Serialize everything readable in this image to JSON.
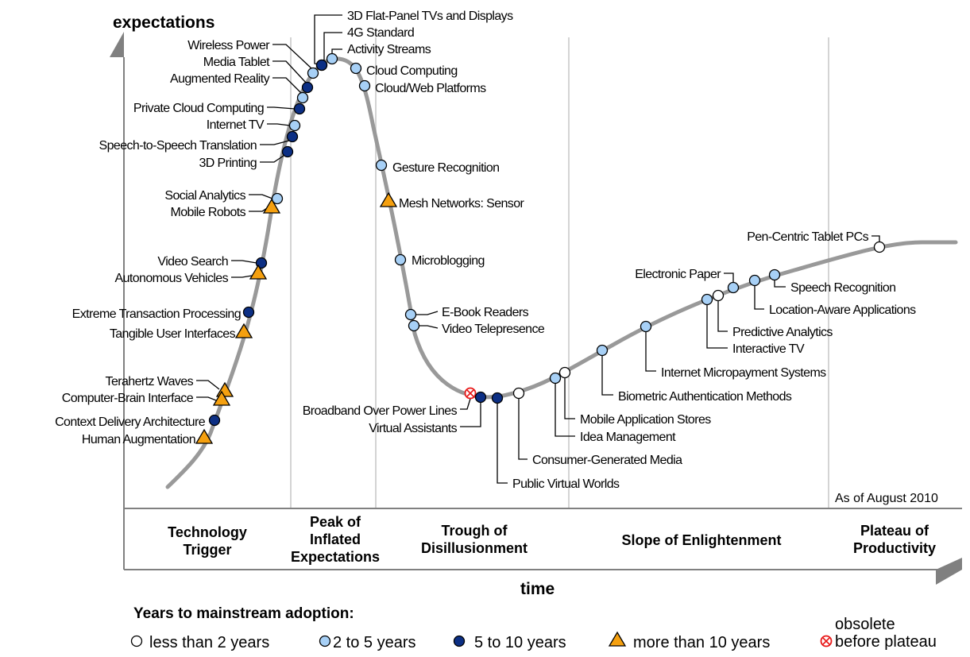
{
  "axes": {
    "y_label": "expectations",
    "x_label": "time"
  },
  "as_of": "As of August 2010",
  "phases": [
    {
      "lines": [
        "Technology",
        "Trigger"
      ]
    },
    {
      "lines": [
        "Peak of",
        "Inflated",
        "Expectations"
      ]
    },
    {
      "lines": [
        "Trough of",
        "Disillusionment"
      ]
    },
    {
      "lines": [
        "Slope of Enlightenment"
      ]
    },
    {
      "lines": [
        "Plateau of",
        "Productivity"
      ]
    }
  ],
  "legend": {
    "heading": "Years to mainstream adoption:",
    "items": [
      {
        "label": "less than 2 years",
        "category": "lt2"
      },
      {
        "label": "2 to 5 years",
        "category": "2to5"
      },
      {
        "label": "5 to 10 years",
        "category": "5to10"
      },
      {
        "label": "more than 10 years",
        "category": "gt10"
      }
    ],
    "obsolete_label": [
      "obsolete",
      "before plateau"
    ]
  },
  "colors": {
    "lt2": "#ffffff",
    "2to5": "#a7d0f6",
    "5to10": "#0c2f84",
    "gt10": "#f5a00f",
    "obsolete": "#e81818",
    "curve": "#999999",
    "axis": "#808080"
  },
  "technologies": [
    {
      "name": "3D Flat-Panel TVs and Displays",
      "category": "5to10"
    },
    {
      "name": "4G Standard",
      "category": "5to10"
    },
    {
      "name": "Activity Streams",
      "category": "2to5"
    },
    {
      "name": "Wireless Power",
      "category": "2to5"
    },
    {
      "name": "Media Tablet",
      "category": "5to10"
    },
    {
      "name": "Augmented Reality",
      "category": "2to5"
    },
    {
      "name": "Private Cloud Computing",
      "category": "5to10"
    },
    {
      "name": "Internet TV",
      "category": "2to5"
    },
    {
      "name": "Speech-to-Speech Translation",
      "category": "5to10"
    },
    {
      "name": "3D Printing",
      "category": "5to10"
    },
    {
      "name": "Social Analytics",
      "category": "2to5"
    },
    {
      "name": "Mobile Robots",
      "category": "gt10"
    },
    {
      "name": "Video Search",
      "category": "5to10"
    },
    {
      "name": "Autonomous Vehicles",
      "category": "gt10"
    },
    {
      "name": "Extreme Transaction Processing",
      "category": "5to10"
    },
    {
      "name": "Tangible User Interfaces",
      "category": "gt10"
    },
    {
      "name": "Terahertz Waves",
      "category": "gt10"
    },
    {
      "name": "Computer-Brain Interface",
      "category": "gt10"
    },
    {
      "name": "Context Delivery Architecture",
      "category": "5to10"
    },
    {
      "name": "Human Augmentation",
      "category": "gt10"
    },
    {
      "name": "Cloud Computing",
      "category": "2to5"
    },
    {
      "name": "Cloud/Web Platforms",
      "category": "2to5"
    },
    {
      "name": "Gesture Recognition",
      "category": "2to5"
    },
    {
      "name": "Mesh Networks: Sensor",
      "category": "gt10"
    },
    {
      "name": "Microblogging",
      "category": "2to5"
    },
    {
      "name": "E-Book Readers",
      "category": "2to5"
    },
    {
      "name": "Video Telepresence",
      "category": "2to5"
    },
    {
      "name": "Broadband Over Power Lines",
      "category": "obsolete"
    },
    {
      "name": "Virtual Assistants",
      "category": "5to10"
    },
    {
      "name": "Public Virtual Worlds",
      "category": "5to10"
    },
    {
      "name": "Consumer-Generated Media",
      "category": "lt2"
    },
    {
      "name": "Idea Management",
      "category": "2to5"
    },
    {
      "name": "Mobile Application Stores",
      "category": "lt2"
    },
    {
      "name": "Biometric Authentication Methods",
      "category": "2to5"
    },
    {
      "name": "Internet Micropayment Systems",
      "category": "2to5"
    },
    {
      "name": "Interactive TV",
      "category": "2to5"
    },
    {
      "name": "Predictive Analytics",
      "category": "lt2"
    },
    {
      "name": "Electronic Paper",
      "category": "2to5"
    },
    {
      "name": "Location-Aware Applications",
      "category": "2to5"
    },
    {
      "name": "Speech Recognition",
      "category": "2to5"
    },
    {
      "name": "Pen-Centric Tablet PCs",
      "category": "lt2"
    }
  ]
}
